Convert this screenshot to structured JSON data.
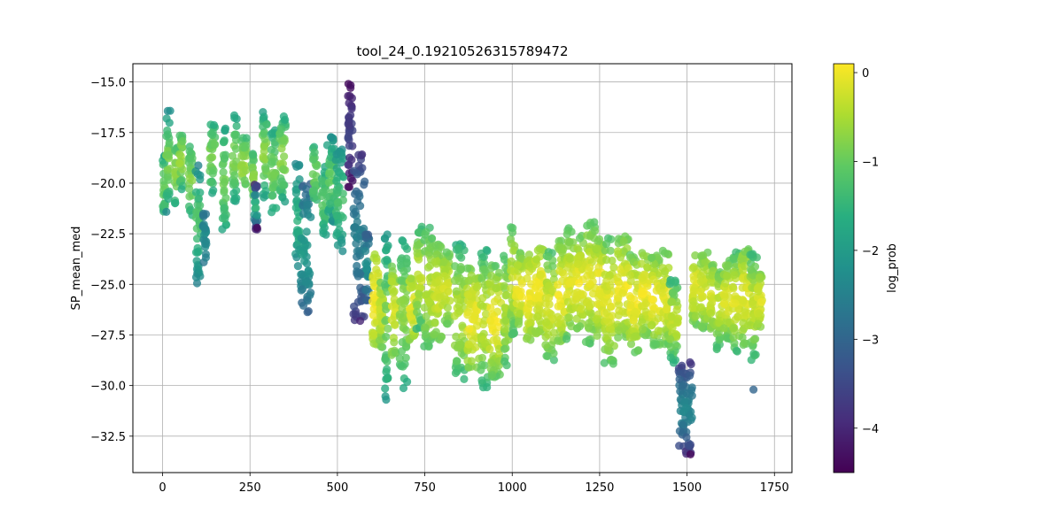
{
  "chart_data": {
    "type": "scatter",
    "title": "tool_24_0.19210526315789472",
    "xlabel": "",
    "ylabel": "SP_mean_med",
    "xlim": [
      -85,
      1800
    ],
    "ylim": [
      -34.3,
      -14.1
    ],
    "xticks": [
      0,
      250,
      500,
      750,
      1000,
      1250,
      1500,
      1750
    ],
    "yticks": [
      -32.5,
      -30.0,
      -27.5,
      -25.0,
      -22.5,
      -20.0,
      -17.5,
      -15.0
    ],
    "grid": true,
    "colorbar": {
      "label": "log_prob",
      "range": [
        -4.5,
        0.1
      ],
      "ticks": [
        0,
        -1,
        -2,
        -3,
        -4
      ],
      "colormap": "viridis"
    },
    "marker_alpha": 0.8,
    "segments": [
      {
        "x": [
          0,
          7
        ],
        "y_top": -18.5,
        "y_bottom": -21.8,
        "c_mid": -1.0,
        "c_edge": -1.8
      },
      {
        "x": [
          10,
          22
        ],
        "y_top": -16.3,
        "y_bottom": -21.5,
        "c_mid": -0.8,
        "c_edge": -2.4
      },
      {
        "x": [
          35,
          42
        ],
        "y_top": -17.9,
        "y_bottom": -21.0,
        "c_mid": -0.7,
        "c_edge": -1.6
      },
      {
        "x": [
          48,
          58
        ],
        "y_top": -17.2,
        "y_bottom": -20.4,
        "c_mid": -0.6,
        "c_edge": -1.8
      },
      {
        "x": [
          75,
          86
        ],
        "y_top": -18.0,
        "y_bottom": -21.6,
        "c_mid": -0.8,
        "c_edge": -1.6
      },
      {
        "x": [
          95,
          110
        ],
        "y_top": -18.8,
        "y_bottom": -25.0,
        "c_mid": -1.2,
        "c_edge": -2.6
      },
      {
        "x": [
          115,
          125
        ],
        "y_top": -21.5,
        "y_bottom": -24.0,
        "c_mid": -2.3,
        "c_edge": -2.7
      },
      {
        "x": [
          135,
          150
        ],
        "y_top": -16.9,
        "y_bottom": -20.5,
        "c_mid": -0.8,
        "c_edge": -1.8
      },
      {
        "x": [
          170,
          182
        ],
        "y_top": -17.3,
        "y_bottom": -22.3,
        "c_mid": -0.9,
        "c_edge": -1.8
      },
      {
        "x": [
          200,
          212
        ],
        "y_top": -16.6,
        "y_bottom": -21.0,
        "c_mid": -0.8,
        "c_edge": -1.9
      },
      {
        "x": [
          225,
          240
        ],
        "y_top": -17.6,
        "y_bottom": -20.6,
        "c_mid": -0.6,
        "c_edge": -1.5
      },
      {
        "x": [
          255,
          262
        ],
        "y_top": -18.5,
        "y_bottom": -21.0,
        "c_mid": -0.7,
        "c_edge": -1.4
      },
      {
        "x": [
          262,
          272
        ],
        "y_top": -20.0,
        "y_bottom": -22.3,
        "c_mid": -1.5,
        "c_edge": -4.2
      },
      {
        "x": [
          285,
          298
        ],
        "y_top": -16.4,
        "y_bottom": -20.8,
        "c_mid": -0.7,
        "c_edge": -2.0
      },
      {
        "x": [
          310,
          325
        ],
        "y_top": -17.3,
        "y_bottom": -21.5,
        "c_mid": -0.9,
        "c_edge": -1.8
      },
      {
        "x": [
          335,
          352
        ],
        "y_top": -16.5,
        "y_bottom": -21.0,
        "c_mid": -0.7,
        "c_edge": -1.9
      },
      {
        "x": [
          380,
          392
        ],
        "y_top": -19.0,
        "y_bottom": -24.2,
        "c_mid": -1.6,
        "c_edge": -2.4
      },
      {
        "x": [
          395,
          425
        ],
        "y_top": -20.0,
        "y_bottom": -26.4,
        "c_mid": -2.0,
        "c_edge": -3.1
      },
      {
        "x": [
          430,
          442
        ],
        "y_top": -18.2,
        "y_bottom": -21.0,
        "c_mid": -0.9,
        "c_edge": -1.6
      },
      {
        "x": [
          455,
          468
        ],
        "y_top": -19.0,
        "y_bottom": -22.6,
        "c_mid": -1.1,
        "c_edge": -1.9
      },
      {
        "x": [
          470,
          492
        ],
        "y_top": -17.6,
        "y_bottom": -22.0,
        "c_mid": -1.0,
        "c_edge": -2.3
      },
      {
        "x": [
          495,
          518
        ],
        "y_top": -18.3,
        "y_bottom": -23.4,
        "c_mid": -1.3,
        "c_edge": -2.3
      },
      {
        "x": [
          530,
          545
        ],
        "y_top": -15.0,
        "y_bottom": -20.2,
        "c_mid": -3.6,
        "c_edge": -4.4
      },
      {
        "x": [
          545,
          578
        ],
        "y_top": -18.5,
        "y_bottom": -26.8,
        "c_mid": -2.5,
        "c_edge": -3.8
      },
      {
        "x": [
          580,
          592
        ],
        "y_top": -22.5,
        "y_bottom": -25.8,
        "c_mid": -2.2,
        "c_edge": -3.2
      },
      {
        "x": [
          600,
          618
        ],
        "y_top": -23.5,
        "y_bottom": -28.0,
        "c_mid": 0.0,
        "c_edge": -0.6
      },
      {
        "x": [
          620,
          632
        ],
        "y_top": -24.5,
        "y_bottom": -28.4,
        "c_mid": -0.3,
        "c_edge": -1.2
      },
      {
        "x": [
          635,
          645
        ],
        "y_top": -22.4,
        "y_bottom": -30.8,
        "c_mid": -0.9,
        "c_edge": -2.1
      },
      {
        "x": [
          655,
          668
        ],
        "y_top": -24.0,
        "y_bottom": -28.5,
        "c_mid": -0.2,
        "c_edge": -0.9
      },
      {
        "x": [
          678,
          700
        ],
        "y_top": -22.6,
        "y_bottom": -30.2,
        "c_mid": -0.7,
        "c_edge": -1.8
      },
      {
        "x": [
          705,
          722
        ],
        "y_top": -24.3,
        "y_bottom": -27.8,
        "c_mid": -0.1,
        "c_edge": -0.8
      },
      {
        "x": [
          725,
          742
        ],
        "y_top": -22.1,
        "y_bottom": -27.2,
        "c_mid": -0.3,
        "c_edge": -1.5
      },
      {
        "x": [
          748,
          772
        ],
        "y_top": -22.2,
        "y_bottom": -28.2,
        "c_mid": -0.4,
        "c_edge": -1.3
      },
      {
        "x": [
          775,
          798
        ],
        "y_top": -23.0,
        "y_bottom": -27.8,
        "c_mid": -0.2,
        "c_edge": -1.0
      },
      {
        "x": [
          800,
          822
        ],
        "y_top": -23.4,
        "y_bottom": -27.0,
        "c_mid": -0.2,
        "c_edge": -1.0
      },
      {
        "x": [
          835,
          865
        ],
        "y_top": -23.0,
        "y_bottom": -29.8,
        "c_mid": -0.4,
        "c_edge": -1.6
      },
      {
        "x": [
          870,
          905
        ],
        "y_top": -24.2,
        "y_bottom": -29.2,
        "c_mid": 0.0,
        "c_edge": -0.9
      },
      {
        "x": [
          910,
          930
        ],
        "y_top": -23.3,
        "y_bottom": -30.1,
        "c_mid": -0.3,
        "c_edge": -1.6
      },
      {
        "x": [
          935,
          968
        ],
        "y_top": -24.0,
        "y_bottom": -29.6,
        "c_mid": 0.0,
        "c_edge": -1.1
      },
      {
        "x": [
          975,
          990
        ],
        "y_top": -23.5,
        "y_bottom": -29.1,
        "c_mid": -0.5,
        "c_edge": -1.3
      },
      {
        "x": [
          995,
          1008
        ],
        "y_top": -22.0,
        "y_bottom": -27.5,
        "c_mid": -0.3,
        "c_edge": -1.3
      },
      {
        "x": [
          1010,
          1030
        ],
        "y_top": -23.4,
        "y_bottom": -27.2,
        "c_mid": 0.0,
        "c_edge": -1.0
      },
      {
        "x": [
          1040,
          1060
        ],
        "y_top": -23.1,
        "y_bottom": -28.0,
        "c_mid": 0.0,
        "c_edge": -0.9
      },
      {
        "x": [
          1065,
          1090
        ],
        "y_top": -23.0,
        "y_bottom": -27.5,
        "c_mid": 0.0,
        "c_edge": -0.8
      },
      {
        "x": [
          1095,
          1120
        ],
        "y_top": -23.4,
        "y_bottom": -28.8,
        "c_mid": -0.2,
        "c_edge": -1.3
      },
      {
        "x": [
          1130,
          1150
        ],
        "y_top": -22.8,
        "y_bottom": -28.2,
        "c_mid": 0.0,
        "c_edge": -1.0
      },
      {
        "x": [
          1155,
          1178
        ],
        "y_top": -22.1,
        "y_bottom": -27.8,
        "c_mid": -0.1,
        "c_edge": -1.3
      },
      {
        "x": [
          1180,
          1205
        ],
        "y_top": -22.6,
        "y_bottom": -27.3,
        "c_mid": 0.0,
        "c_edge": -1.0
      },
      {
        "x": [
          1210,
          1238
        ],
        "y_top": -21.8,
        "y_bottom": -28.0,
        "c_mid": -0.1,
        "c_edge": -1.2
      },
      {
        "x": [
          1240,
          1260
        ],
        "y_top": -22.6,
        "y_bottom": -27.7,
        "c_mid": 0.0,
        "c_edge": -0.9
      },
      {
        "x": [
          1262,
          1292
        ],
        "y_top": -22.7,
        "y_bottom": -29.0,
        "c_mid": -0.1,
        "c_edge": -1.2
      },
      {
        "x": [
          1300,
          1332
        ],
        "y_top": -22.6,
        "y_bottom": -27.8,
        "c_mid": 0.0,
        "c_edge": -1.0
      },
      {
        "x": [
          1335,
          1362
        ],
        "y_top": -23.5,
        "y_bottom": -28.4,
        "c_mid": 0.0,
        "c_edge": -1.0
      },
      {
        "x": [
          1368,
          1392
        ],
        "y_top": -23.2,
        "y_bottom": -27.6,
        "c_mid": 0.0,
        "c_edge": -1.0
      },
      {
        "x": [
          1398,
          1425
        ],
        "y_top": -23.4,
        "y_bottom": -28.1,
        "c_mid": 0.0,
        "c_edge": -1.1
      },
      {
        "x": [
          1428,
          1448
        ],
        "y_top": -23.3,
        "y_bottom": -28.0,
        "c_mid": -0.1,
        "c_edge": -1.0
      },
      {
        "x": [
          1450,
          1475
        ],
        "y_top": -24.6,
        "y_bottom": -29.0,
        "c_mid": -0.3,
        "c_edge": -1.8
      },
      {
        "x": [
          1475,
          1515
        ],
        "y_top": -28.8,
        "y_bottom": -33.4,
        "c_mid": -2.4,
        "c_edge": -3.9
      },
      {
        "x": [
          1515,
          1532
        ],
        "y_top": -23.2,
        "y_bottom": -27.0,
        "c_mid": -0.1,
        "c_edge": -1.0
      },
      {
        "x": [
          1538,
          1560
        ],
        "y_top": -23.3,
        "y_bottom": -27.3,
        "c_mid": -0.2,
        "c_edge": -1.1
      },
      {
        "x": [
          1565,
          1580
        ],
        "y_top": -24.0,
        "y_bottom": -27.3,
        "c_mid": -0.2,
        "c_edge": -0.9
      },
      {
        "x": [
          1585,
          1600
        ],
        "y_top": -23.8,
        "y_bottom": -28.3,
        "c_mid": -0.3,
        "c_edge": -1.5
      },
      {
        "x": [
          1605,
          1625
        ],
        "y_top": -23.7,
        "y_bottom": -27.8,
        "c_mid": -0.1,
        "c_edge": -1.2
      },
      {
        "x": [
          1630,
          1650
        ],
        "y_top": -23.3,
        "y_bottom": -28.4,
        "c_mid": -0.1,
        "c_edge": -1.4
      },
      {
        "x": [
          1655,
          1680
        ],
        "y_top": -23.1,
        "y_bottom": -28.0,
        "c_mid": -0.1,
        "c_edge": -1.0
      },
      {
        "x": [
          1680,
          1700
        ],
        "y_top": -23.3,
        "y_bottom": -28.8,
        "c_mid": -0.3,
        "c_edge": -1.6
      },
      {
        "x": [
          1700,
          1715
        ],
        "y_top": -24.5,
        "y_bottom": -27.2,
        "c_mid": -0.1,
        "c_edge": -0.8
      }
    ],
    "outliers": [
      {
        "x": 1690,
        "y": -30.2,
        "c": -3.0
      },
      {
        "x": 1510,
        "y": -33.4,
        "c": -4.4
      },
      {
        "x": 565,
        "y": -26.8,
        "c": -4.0
      },
      {
        "x": 270,
        "y": -22.2,
        "c": -4.4
      }
    ]
  }
}
